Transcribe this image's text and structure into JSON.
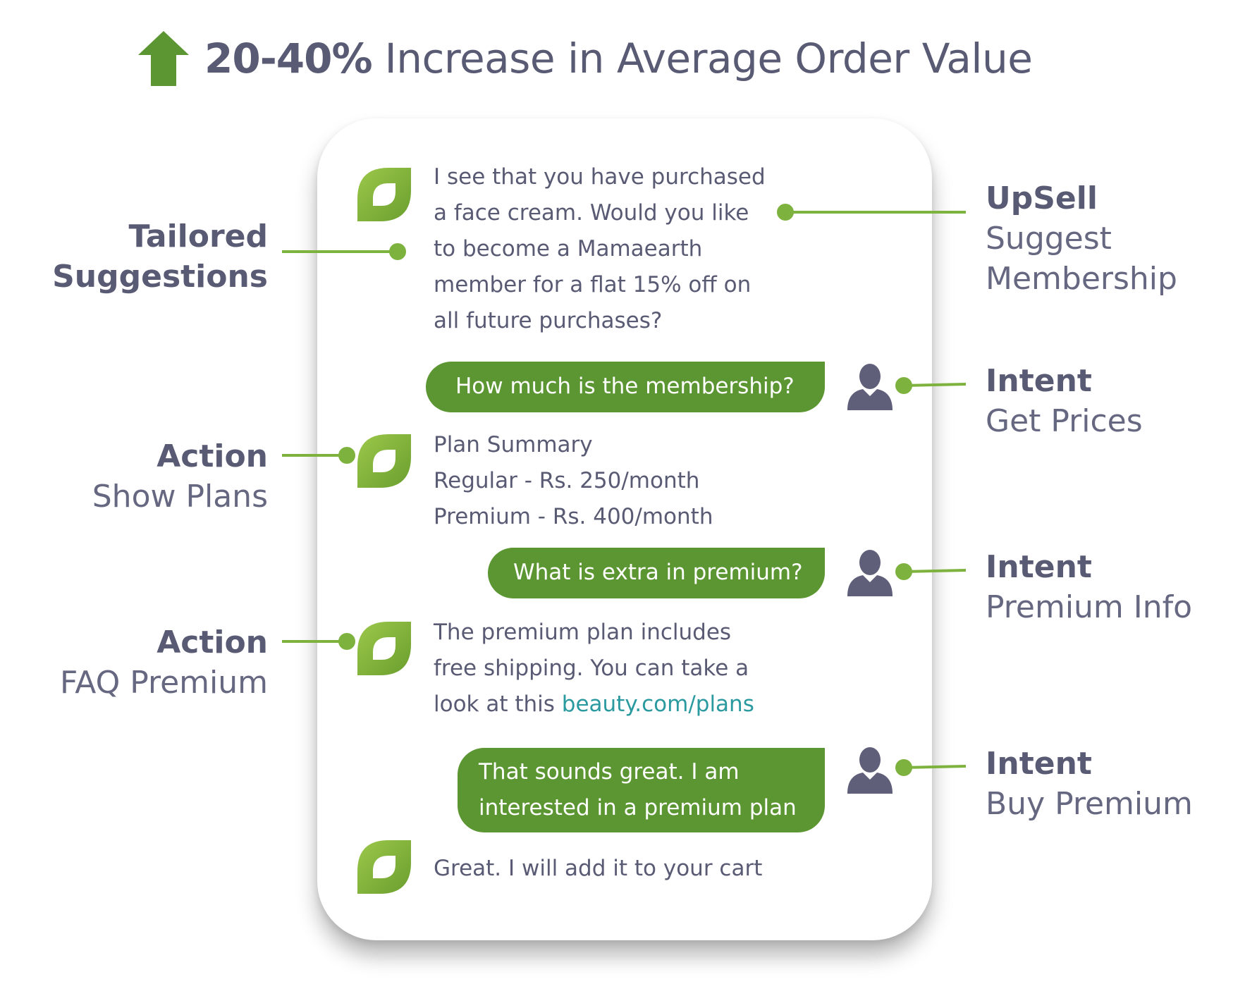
{
  "headline": {
    "percent": "20-40%",
    "text": "Increase in Average Order Value"
  },
  "colors": {
    "green": "#5b9632",
    "leaf_light": "#8dbd3e",
    "leaf_dark": "#6ea033",
    "dot": "#7eb23e",
    "text": "#595a73",
    "link": "#2a9aa0",
    "user_icon": "#5f5f7a"
  },
  "icons": {
    "headline": "up-arrow-icon",
    "bot": "leaf-logo-icon",
    "user": "user-icon"
  },
  "chat": {
    "bot1": {
      "lines": [
        "I see that you have purchased",
        "a face cream. Would you like",
        "to become a Mamaearth",
        "member for a flat 15% off on",
        "all future purchases?"
      ]
    },
    "user1": {
      "lines": [
        "How much is the membership?"
      ]
    },
    "bot2": {
      "lines": [
        "Plan Summary",
        "Regular - Rs. 250/month",
        "Premium - Rs. 400/month"
      ]
    },
    "user2": {
      "lines": [
        "What is extra in premium?"
      ]
    },
    "bot3": {
      "line1": "The premium plan includes",
      "line2": "free shipping. You can take a",
      "line3_prefix": "look at this ",
      "link": "beauty.com/plans"
    },
    "user3": {
      "lines": [
        "That sounds great. I am",
        "interested in a premium plan"
      ]
    },
    "bot4": {
      "lines": [
        "Great. I will add it to your cart"
      ]
    }
  },
  "annotations": {
    "left": [
      {
        "title": "Tailored",
        "sub": "Suggestions"
      },
      {
        "title": "Action",
        "sub": "Show Plans"
      },
      {
        "title": "Action",
        "sub": "FAQ Premium"
      }
    ],
    "right": [
      {
        "title": "UpSell",
        "sub1": "Suggest",
        "sub2": "Membership"
      },
      {
        "title": "Intent",
        "sub": "Get Prices"
      },
      {
        "title": "Intent",
        "sub": "Premium Info"
      },
      {
        "title": "Intent",
        "sub": "Buy Premium"
      }
    ]
  }
}
